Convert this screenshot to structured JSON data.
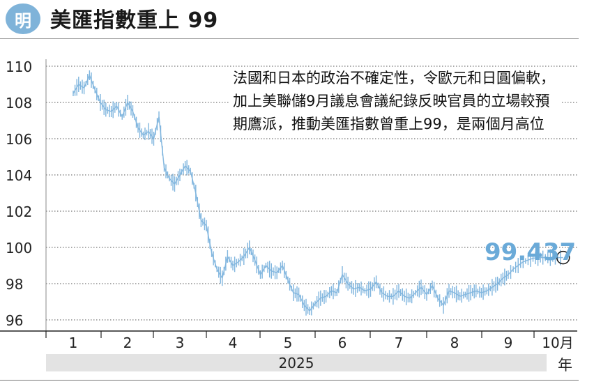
{
  "header": {
    "logo_text": "明",
    "title": "美匯指數重上 99"
  },
  "annotation": "法國和日本的政治不確定性，令歐元和日圓偏軟，加上美聯儲9月議息會議紀錄反映官員的立場較預期鷹派，推動美匯指數曾重上99，是兩個月高位",
  "last_value": "99.437",
  "year_label": "2025",
  "year_char": "年",
  "colors": {
    "series": "#7fb5de",
    "accent": "#6aaad8",
    "grid": "#555555"
  },
  "chart_data": {
    "type": "line",
    "title": "美匯指數重上 99",
    "ylim": [
      95,
      110
    ],
    "y_ticks": [
      110,
      108,
      106,
      104,
      102,
      100,
      98,
      96
    ],
    "months": [
      {
        "label": "1",
        "month": 1
      },
      {
        "label": "2",
        "month": 2
      },
      {
        "label": "3",
        "month": 3
      },
      {
        "label": "4",
        "month": 4
      },
      {
        "label": "5",
        "month": 5
      },
      {
        "label": "6",
        "month": 6
      },
      {
        "label": "7",
        "month": 7
      },
      {
        "label": "8",
        "month": 8
      },
      {
        "label": "9",
        "month": 9
      },
      {
        "label": "10月",
        "month": 10
      }
    ],
    "series": [
      {
        "x": [
          1.0,
          1.1,
          1.2,
          1.3,
          1.4,
          1.5,
          1.6,
          1.7,
          1.8,
          1.9,
          2.0,
          2.1,
          2.2,
          2.3,
          2.4,
          2.5,
          2.6,
          2.7,
          2.8,
          2.9,
          3.0,
          3.1,
          3.2,
          3.3,
          3.4,
          3.5,
          3.6,
          3.7,
          3.8,
          3.9,
          4.0,
          4.1,
          4.2,
          4.3,
          4.4,
          4.5,
          4.6,
          4.7,
          4.8,
          4.9,
          5.0,
          5.1,
          5.2,
          5.3,
          5.4,
          5.5,
          5.6,
          5.7,
          5.8,
          5.9,
          6.0,
          6.1,
          6.2,
          6.3,
          6.4,
          6.5,
          6.6,
          6.7,
          6.8,
          6.9,
          7.0,
          7.1,
          7.2,
          7.3,
          7.4,
          7.5,
          7.6,
          7.7,
          7.8,
          7.9,
          8.0,
          8.1,
          8.2,
          8.3,
          8.4,
          8.5,
          8.6,
          8.7,
          8.8,
          8.9,
          9.0,
          9.1,
          9.2,
          9.3,
          9.4,
          9.5,
          9.6,
          9.7,
          9.8,
          9.9,
          10.0,
          10.05,
          10.1
        ],
        "values": [
          108.5,
          109.0,
          108.8,
          109.5,
          108.7,
          108.0,
          107.6,
          107.5,
          107.8,
          107.2,
          108.0,
          107.5,
          106.6,
          106.2,
          106.4,
          106.0,
          107.2,
          104.4,
          103.8,
          103.5,
          104.0,
          104.5,
          104.2,
          103.0,
          101.5,
          101.2,
          99.7,
          98.8,
          98.3,
          99.5,
          99.0,
          99.2,
          99.5,
          100.0,
          99.3,
          98.5,
          99.0,
          98.7,
          98.6,
          99.0,
          98.2,
          97.5,
          97.4,
          96.8,
          96.5,
          96.9,
          97.2,
          97.3,
          97.6,
          97.5,
          98.5,
          98.0,
          97.7,
          97.8,
          97.6,
          97.7,
          98.1,
          97.5,
          97.3,
          97.3,
          97.6,
          97.3,
          97.2,
          97.5,
          97.8,
          97.4,
          97.9,
          97.2,
          96.8,
          97.6,
          97.5,
          97.3,
          97.4,
          97.5,
          97.6,
          97.5,
          97.6,
          97.8,
          98.0,
          98.3,
          98.5,
          98.8,
          99.0,
          99.2,
          99.3,
          99.4,
          99.437,
          99.437,
          99.437,
          99.437,
          99.437,
          99.437,
          99.437
        ]
      }
    ]
  }
}
